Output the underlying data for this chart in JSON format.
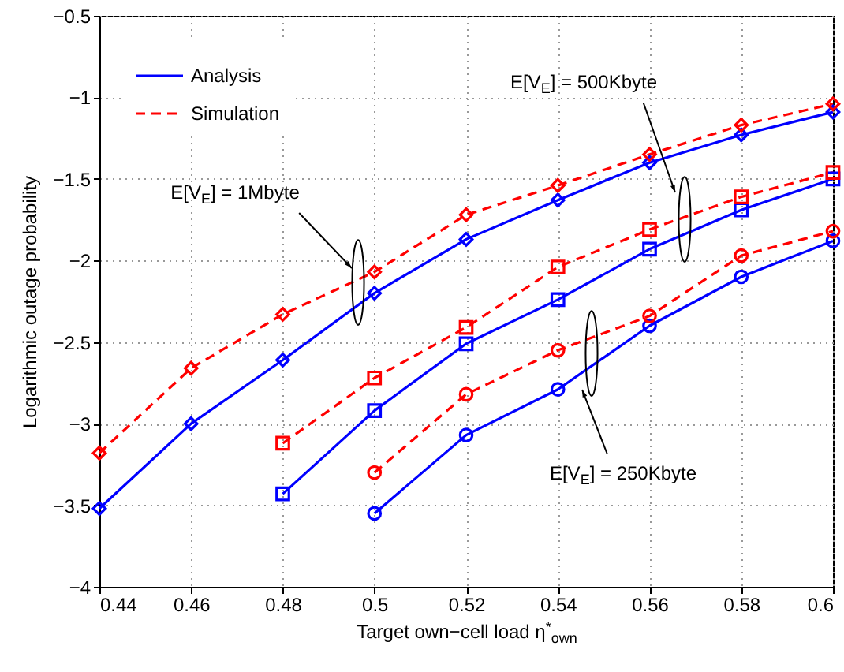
{
  "chart_data": {
    "type": "line",
    "xlabel": "Target own−cell load η$^{*}$$_{own}$",
    "ylabel": "Logarithmic outage probability",
    "xlim": [
      0.44,
      0.6
    ],
    "xticks": [
      0.44,
      0.46,
      0.48,
      0.5,
      0.52,
      0.54,
      0.56,
      0.58,
      0.6
    ],
    "ylim": [
      -4,
      -0.5
    ],
    "yticks": [
      -4,
      -3.5,
      -3,
      -2.5,
      -2,
      -1.5,
      -1,
      -0.5
    ],
    "grid": true,
    "legend": "top left",
    "series": [
      {
        "name": "Analysis",
        "color": "#0000ff",
        "marker": "diamond",
        "line_style": "solid",
        "x": [
          0.44,
          0.46,
          0.48,
          0.5,
          0.52,
          0.54,
          0.56,
          0.58,
          0.6
        ],
        "values": [
          -3.52,
          -3.0,
          -2.61,
          -2.2,
          -1.87,
          -1.63,
          -1.4,
          -1.23,
          -1.09
        ]
      },
      {
        "name": "Simulation",
        "color": "#ff0000",
        "marker": "diamond",
        "line_style": "dashed",
        "x": [
          0.44,
          0.46,
          0.48,
          0.5,
          0.52,
          0.54,
          0.56,
          0.58,
          0.6
        ],
        "values": [
          -3.18,
          -2.66,
          -2.33,
          -2.07,
          -1.72,
          -1.54,
          -1.35,
          -1.17,
          -1.04
        ]
      },
      {
        "color": "#0000ff",
        "marker": "square",
        "line_style": "solid",
        "x": [
          0.48,
          0.5,
          0.52,
          0.54,
          0.56,
          0.58,
          0.6
        ],
        "values": [
          -3.43,
          -2.92,
          -2.51,
          -2.24,
          -1.93,
          -1.69,
          -1.5
        ]
      },
      {
        "color": "#ff0000",
        "marker": "square",
        "line_style": "dashed",
        "x": [
          0.48,
          0.5,
          0.52,
          0.54,
          0.56,
          0.58,
          0.6
        ],
        "values": [
          -3.12,
          -2.72,
          -2.41,
          -2.04,
          -1.81,
          -1.61,
          -1.46
        ]
      },
      {
        "color": "#0000ff",
        "marker": "circle",
        "line_style": "solid",
        "x": [
          0.5,
          0.52,
          0.54,
          0.56,
          0.58,
          0.6
        ],
        "values": [
          -3.55,
          -3.07,
          -2.79,
          -2.4,
          -2.1,
          -1.88
        ]
      },
      {
        "color": "#ff0000",
        "marker": "circle",
        "line_style": "dashed",
        "x": [
          0.5,
          0.52,
          0.54,
          0.56,
          0.58,
          0.6
        ],
        "values": [
          -3.3,
          -2.82,
          -2.55,
          -2.34,
          -1.97,
          -1.82
        ]
      }
    ],
    "annotations": [
      "E[V$_{E}$] = 1Mbyte",
      "E[V$_{E}$] = 500Kbyte",
      "E[V$_{E}$] = 250Kbyte"
    ]
  }
}
